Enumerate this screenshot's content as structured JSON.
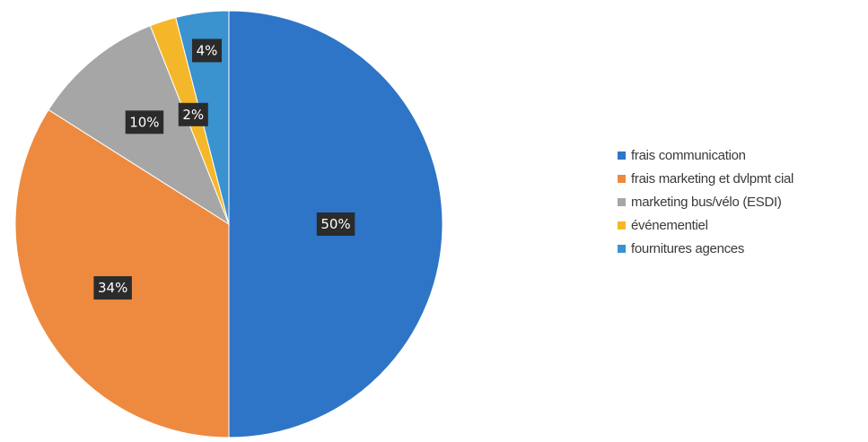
{
  "chart_data": {
    "type": "pie",
    "categories": [
      "frais communication",
      "frais marketing et dvlpmt cial",
      "marketing bus/vélo (ESDI)",
      "événementiel",
      "fournitures agences"
    ],
    "values": [
      50,
      34,
      10,
      2,
      4
    ],
    "labels": [
      "50%",
      "34%",
      "10%",
      "2%",
      "4%"
    ],
    "colors": [
      "#2e75c7",
      "#ee8a3f",
      "#a6a6a6",
      "#f5b72a",
      "#3a92cf"
    ],
    "start_angle_deg": 0,
    "direction": "clockwise",
    "legend": "right",
    "title": ""
  }
}
